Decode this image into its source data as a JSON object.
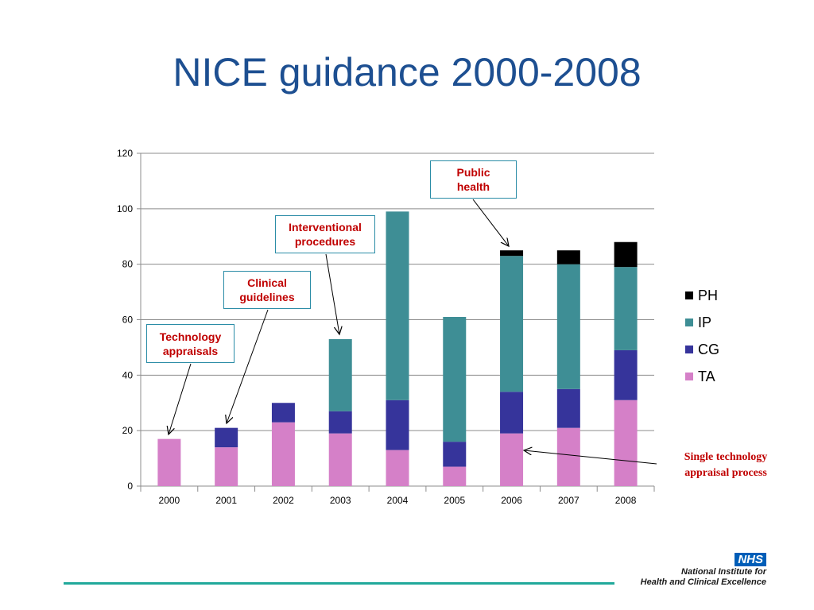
{
  "title": "NICE guidance 2000-2008",
  "colors": {
    "PH": "#000000",
    "IP": "#3e8e95",
    "CG": "#36349b",
    "TA": "#d580c8",
    "title": "#1d4f91",
    "callout_text": "#c00000",
    "callout_border": "#2a8ca6"
  },
  "chart_data": {
    "type": "bar",
    "stacked": true,
    "categories": [
      "2000",
      "2001",
      "2002",
      "2003",
      "2004",
      "2005",
      "2006",
      "2007",
      "2008"
    ],
    "series": [
      {
        "name": "TA",
        "values": [
          17,
          14,
          23,
          19,
          13,
          7,
          19,
          21,
          31
        ]
      },
      {
        "name": "CG",
        "values": [
          0,
          7,
          7,
          8,
          18,
          9,
          15,
          14,
          18
        ]
      },
      {
        "name": "IP",
        "values": [
          0,
          0,
          0,
          26,
          68,
          45,
          49,
          45,
          30
        ]
      },
      {
        "name": "PH",
        "values": [
          0,
          0,
          0,
          0,
          0,
          0,
          2,
          5,
          9
        ]
      }
    ],
    "ylim": [
      0,
      120
    ],
    "yticks": [
      0,
      20,
      40,
      60,
      80,
      100,
      120
    ],
    "grid": true,
    "legend": {
      "position": "right",
      "order": [
        "PH",
        "IP",
        "CG",
        "TA"
      ]
    }
  },
  "annotations": {
    "technology_appraisals": "Technology appraisals",
    "clinical_guidelines": "Clinical guidelines",
    "interventional_procedures": "Interventional procedures",
    "public_health": "Public health",
    "single_technology": "Single technology appraisal process"
  },
  "logo": {
    "badge": "NHS",
    "line1": "National Institute for",
    "line2": "Health and Clinical Excellence"
  }
}
